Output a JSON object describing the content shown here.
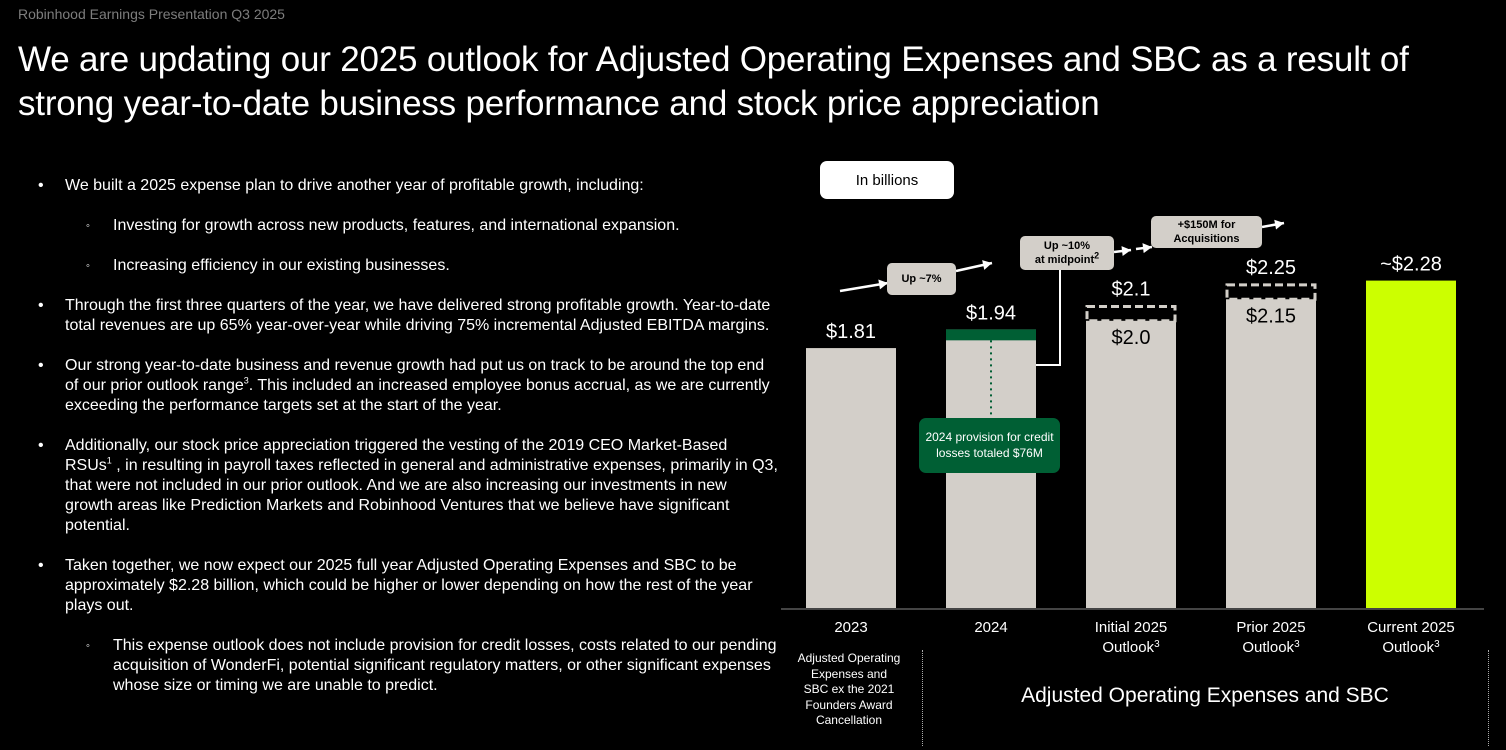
{
  "header": {
    "label": "Robinhood Earnings Presentation Q3 2025",
    "title": "We are updating our 2025 outlook for Adjusted Operating Expenses and SBC as a result of strong year-to-date business performance and stock price appreciation"
  },
  "bullets": [
    {
      "level": 1,
      "text": "We built a 2025 expense plan to drive another year of profitable growth, including:"
    },
    {
      "level": 2,
      "text": "Investing for growth across new products, features, and international expansion."
    },
    {
      "level": 2,
      "text": "Increasing efficiency in our existing businesses."
    },
    {
      "level": 1,
      "text": "Through the first three quarters of the year, we have delivered strong profitable growth. Year-to-date total revenues are up 65% year-over-year while driving 75% incremental Adjusted EBITDA margins."
    },
    {
      "level": 1,
      "text_before": "Our strong year-to-date business and revenue growth had put us on track to be around the top end of our prior outlook range",
      "sup": "3",
      "text_after": ". This included an increased employee bonus accrual, as we are currently exceeding the performance targets set at the start of the year."
    },
    {
      "level": 1,
      "text_before": "Additionally, our stock price appreciation triggered the vesting of the 2019 CEO Market-Based RSUs",
      "sup": "1",
      "text_after": " , in resulting in payroll taxes reflected in general and administrative expenses, primarily in Q3, that were not included in our prior outlook. And we are also increasing our investments in new growth areas like Prediction Markets and Robinhood Ventures that we believe have significant potential."
    },
    {
      "level": 1,
      "text": "Taken together, we now expect our 2025 full year Adjusted Operating Expenses and SBC to be approximately $2.28 billion, which could be higher or lower depending on how the rest of the year plays out."
    },
    {
      "level": 2,
      "text": "This expense outlook does not include provision for credit losses, costs related to our pending acquisition of WonderFi, potential significant regulatory matters, or other significant expenses whose size or timing we are unable to predict."
    }
  ],
  "chart_data": {
    "type": "bar",
    "title": "",
    "unit_label": "In billions",
    "xlabel": "",
    "ylabel": "",
    "ylim": [
      0,
      2.3
    ],
    "grid": false,
    "categories": [
      {
        "line1": "2023",
        "line2": ""
      },
      {
        "line1": "2024",
        "line2": ""
      },
      {
        "line1": "Initial 2025",
        "line2": "Outlook",
        "sup": "3"
      },
      {
        "line1": "Prior 2025",
        "line2": "Outlook",
        "sup": "3"
      },
      {
        "line1": "Current 2025",
        "line2": "Outlook",
        "sup": "3"
      }
    ],
    "bars": [
      {
        "value": 1.81,
        "label": "$1.81",
        "color": "#d3cfc9"
      },
      {
        "value": 1.94,
        "label": "$1.94",
        "color": "#d3cfc9",
        "provision_segment": 0.076,
        "provision_color": "#005f34"
      },
      {
        "value": 2.0,
        "range_high": 2.1,
        "label_low": "$2.0",
        "label_high": "$2.1",
        "color": "#d3cfc9"
      },
      {
        "value": 2.15,
        "range_high": 2.25,
        "label_low": "$2.15",
        "label_high": "$2.25",
        "color": "#d3cfc9"
      },
      {
        "value": 2.28,
        "label": "~$2.28",
        "color": "#ccff00"
      }
    ],
    "annotations": {
      "up7": "Up ~7%",
      "up10_line1": "Up ~10%",
      "up10_line2": "at midpoint",
      "up10_sup": "2",
      "acq_line1": "+$150M for",
      "acq_line2": "Acquisitions",
      "provision_note": "2024 provision for credit losses totaled $76M"
    },
    "footer_left": "Adjusted Operating Expenses and SBC ex the 2021 Founders Award Cancellation",
    "footer_main": "Adjusted Operating Expenses and SBC"
  }
}
